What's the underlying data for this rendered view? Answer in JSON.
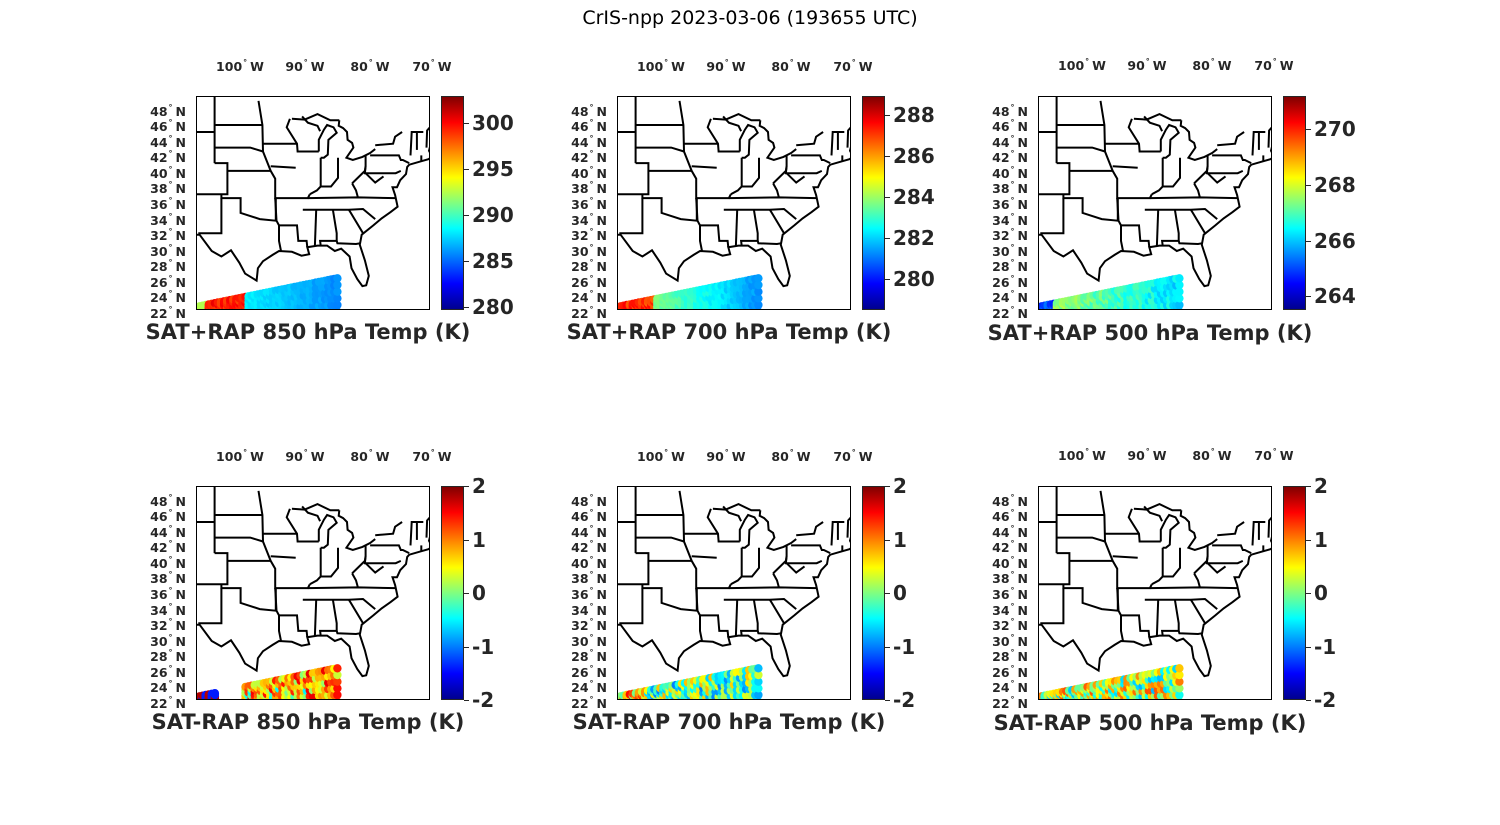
{
  "figure_title": "CrIS-npp 2023-03-06 (193655 UTC)",
  "lon_labels": [
    "100",
    "90",
    "80",
    "70"
  ],
  "lon_suffix": "W",
  "lat_labels": [
    "48",
    "46",
    "44",
    "42",
    "40",
    "38",
    "36",
    "34",
    "32",
    "30",
    "28",
    "26",
    "24",
    "22"
  ],
  "lat_suffix": "N",
  "degree_symbol": "°",
  "panels": [
    {
      "title": "SAT+RAP 850 hPa Temp (K)",
      "colorbar": {
        "min": 279.7,
        "max": 302.9,
        "ticks": [
          "280",
          "285",
          "290",
          "295",
          "300"
        ],
        "tick_values": [
          280,
          285,
          290,
          295,
          300
        ]
      },
      "kind": "sum",
      "scheme": "850"
    },
    {
      "title": "SAT+RAP 700 hPa Temp (K)",
      "colorbar": {
        "min": 278.5,
        "max": 288.9,
        "ticks": [
          "280",
          "282",
          "284",
          "286",
          "288"
        ],
        "tick_values": [
          280,
          282,
          284,
          286,
          288
        ]
      },
      "kind": "sum",
      "scheme": "700"
    },
    {
      "title": "SAT+RAP 500 hPa Temp (K)",
      "colorbar": {
        "min": 263.5,
        "max": 271.2,
        "ticks": [
          "264",
          "266",
          "268",
          "270"
        ],
        "tick_values": [
          264,
          266,
          268,
          270
        ]
      },
      "kind": "sum",
      "scheme": "500"
    },
    {
      "title": "SAT-RAP 850 hPa Temp (K)",
      "colorbar": {
        "min": -2,
        "max": 2,
        "ticks": [
          "-2",
          "-1",
          "0",
          "1",
          "2"
        ],
        "tick_values": [
          -2,
          -1,
          0,
          1,
          2
        ]
      },
      "kind": "diff",
      "scheme": "850"
    },
    {
      "title": "SAT-RAP 700 hPa Temp (K)",
      "colorbar": {
        "min": -2,
        "max": 2,
        "ticks": [
          "-2",
          "-1",
          "0",
          "1",
          "2"
        ],
        "tick_values": [
          -2,
          -1,
          0,
          1,
          2
        ]
      },
      "kind": "diff",
      "scheme": "700"
    },
    {
      "title": "SAT-RAP 500 hPa Temp (K)",
      "colorbar": {
        "min": -2,
        "max": 2,
        "ticks": [
          "-2",
          "-1",
          "0",
          "1",
          "2"
        ],
        "tick_values": [
          -2,
          -1,
          0,
          1,
          2
        ]
      },
      "kind": "diff",
      "scheme": "500"
    }
  ]
}
